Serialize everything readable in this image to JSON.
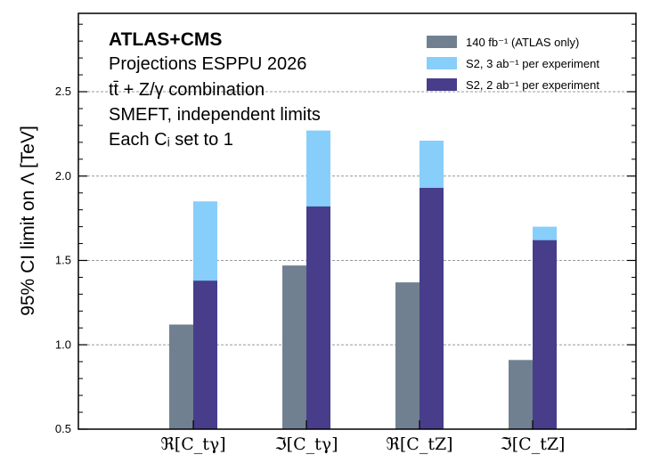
{
  "chart_data": {
    "type": "bar",
    "ylabel": "95% CI limit on Λ [TeV]",
    "ylim": [
      0.5,
      3.0
    ],
    "yticks": [
      "0.5",
      "1.0",
      "1.5",
      "2.0",
      "2.5"
    ],
    "grid": "horizontal-dashed",
    "legend_position": "top-right",
    "annotation": {
      "experiment": "ATLAS+CMS",
      "lines": [
        "Projections ESPPU 2026",
        "tt̄ + Z/γ combination",
        "SMEFT, independent limits",
        "Each Cᵢ set to 1"
      ]
    },
    "categories": [
      "ℜ[C_tγ]",
      "ℑ[C_tγ]",
      "ℜ[C_tZ]",
      "ℑ[C_tZ]"
    ],
    "series": [
      {
        "name": "140 fb⁻¹ (ATLAS only)",
        "color": "#708090",
        "values": [
          1.12,
          1.47,
          1.37,
          0.91
        ]
      },
      {
        "name": "S2, 3 ab⁻¹ per experiment",
        "color": "#87CEFA",
        "values": [
          1.85,
          2.27,
          2.21,
          1.7
        ]
      },
      {
        "name": "S2, 2 ab⁻¹ per experiment",
        "color": "#483D8B",
        "values": [
          1.38,
          1.82,
          1.93,
          1.62
        ]
      }
    ]
  }
}
